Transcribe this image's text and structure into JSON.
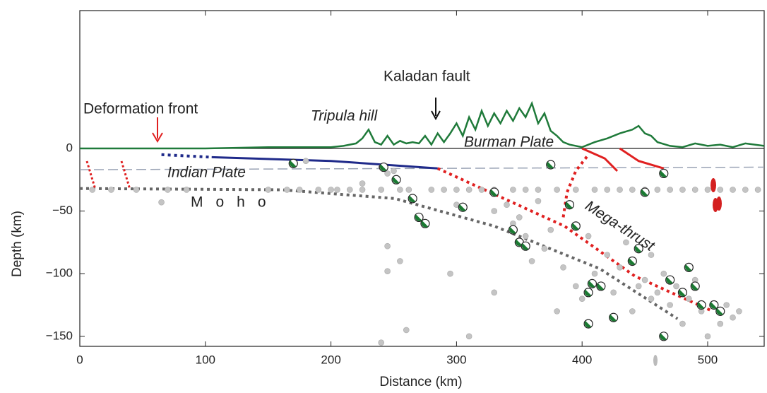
{
  "chart_data": {
    "type": "scatter",
    "xlabel": "Distance (km)",
    "ylabel": "Depth (km)",
    "xlim": [
      0,
      545
    ],
    "ylim": [
      -158,
      110
    ],
    "xticks": [
      0,
      100,
      200,
      300,
      400,
      500
    ],
    "yticks": [
      0,
      {
        "value": -50,
        "label": "−50"
      },
      {
        "value": -100,
        "label": "−100"
      },
      {
        "value": -150,
        "label": "−150"
      }
    ],
    "annotations": [
      "Deformation front",
      "Tripula hill",
      "Kaladan fault",
      "Burman Plate",
      "Indian Plate",
      "Moho",
      "Mega-thrust"
    ],
    "series": [
      {
        "style": "line",
        "color": "#1f7a3a",
        "x": [
          0,
          50,
          100,
          150,
          200,
          210,
          220,
          225,
          230,
          235,
          240,
          245,
          250,
          255,
          260,
          265,
          270,
          275,
          280,
          285,
          290,
          295,
          300,
          305,
          310,
          315,
          320,
          325,
          330,
          335,
          340,
          345,
          350,
          355,
          360,
          365,
          370,
          375,
          380,
          385,
          390,
          400,
          410,
          420,
          430,
          440,
          445,
          450,
          455,
          460,
          470,
          480,
          490,
          500,
          510,
          520,
          530,
          545
        ],
        "values": [
          0,
          0,
          0,
          1,
          1,
          2,
          4,
          8,
          15,
          5,
          3,
          10,
          3,
          6,
          4,
          5,
          4,
          10,
          3,
          12,
          5,
          12,
          20,
          10,
          25,
          15,
          30,
          18,
          28,
          20,
          30,
          22,
          32,
          25,
          36,
          20,
          28,
          14,
          10,
          5,
          3,
          1,
          5,
          8,
          12,
          15,
          18,
          12,
          10,
          5,
          2,
          1,
          4,
          2,
          3,
          1,
          4,
          2
        ]
      },
      {
        "style": "dashed",
        "color": "#9aa3b5",
        "x": [
          0,
          545
        ],
        "values": [
          -17,
          -15
        ]
      },
      {
        "style": "dotted",
        "color": "#666666",
        "x": [
          0,
          161,
          251,
          330,
          414,
          476
        ],
        "values": [
          -32,
          -33,
          -40,
          -62,
          -96,
          -136
        ]
      },
      {
        "style": "dotted",
        "color": "#1f2a8a",
        "x": [
          65,
          105
        ],
        "values": [
          -5,
          -7
        ]
      },
      {
        "style": "line",
        "color": "#1f2a8a",
        "x": [
          105,
          200,
          285
        ],
        "values": [
          -7,
          -10,
          -16
        ]
      },
      {
        "style": "dotted",
        "color": "#e02020",
        "x": [
          285,
          386,
          442,
          504
        ],
        "values": [
          -16,
          -62,
          -102,
          -130
        ]
      },
      {
        "style": "dotted",
        "color": "#e02020",
        "x": [
          385,
          388,
          395,
          405
        ],
        "values": [
          -55,
          -35,
          -18,
          -5
        ]
      },
      {
        "style": "line",
        "color": "#e02020",
        "x": [
          400,
          418,
          428
        ],
        "values": [
          0,
          -8,
          -18
        ]
      },
      {
        "style": "line",
        "color": "#e02020",
        "x": [
          430,
          445,
          465
        ],
        "values": [
          0,
          -10,
          -16
        ]
      },
      {
        "style": "points",
        "color": "#c4c4c4",
        "x": [
          10,
          25,
          45,
          70,
          85,
          150,
          165,
          175,
          190,
          200,
          205,
          215,
          225,
          240,
          255,
          262,
          280,
          290,
          300,
          310,
          320,
          330,
          345,
          355,
          365,
          380,
          395,
          410,
          420,
          430,
          440,
          450,
          460,
          470,
          480,
          490,
          500,
          510,
          520,
          530,
          540,
          180,
          240,
          245,
          250,
          225,
          65,
          245,
          245,
          255,
          295,
          240,
          260,
          310,
          330,
          345,
          330,
          350,
          355,
          360,
          370,
          375,
          380,
          385,
          395,
          400,
          410,
          420,
          425,
          430,
          440,
          445,
          450,
          455,
          460,
          465,
          470,
          475,
          480,
          485,
          490,
          495,
          500,
          510,
          515,
          520,
          525,
          455,
          435,
          405,
          390,
          365,
          340,
          300
        ],
        "values": [
          -33,
          -33,
          -33,
          -33,
          -33,
          -33,
          -33,
          -33,
          -33,
          -33,
          -33,
          -33,
          -33,
          -33,
          -33,
          -33,
          -33,
          -33,
          -33,
          -33,
          -33,
          -33,
          -33,
          -33,
          -33,
          -33,
          -33,
          -33,
          -33,
          -33,
          -33,
          -33,
          -33,
          -33,
          -33,
          -33,
          -33,
          -33,
          -33,
          -33,
          -33,
          -10,
          -15,
          -20,
          -18,
          -28,
          -43,
          -78,
          -98,
          -90,
          -100,
          -155,
          -145,
          -150,
          -115,
          -60,
          -50,
          -55,
          -70,
          -90,
          -80,
          -65,
          -130,
          -95,
          -110,
          -120,
          -100,
          -85,
          -115,
          -95,
          -130,
          -110,
          -105,
          -120,
          -115,
          -100,
          -125,
          -110,
          -140,
          -120,
          -105,
          -130,
          -150,
          -140,
          -125,
          -135,
          -130,
          -85,
          -75,
          -70,
          -45,
          -42,
          -45,
          -45
        ]
      },
      {
        "style": "focal",
        "color": "#1a7a32",
        "x": [
          170,
          242,
          252,
          265,
          275,
          305,
          330,
          345,
          350,
          355,
          375,
          390,
          395,
          405,
          408,
          415,
          425,
          405,
          440,
          445,
          450,
          465,
          470,
          480,
          485,
          490,
          495,
          505,
          510,
          465,
          270
        ],
        "values": [
          -12,
          -15,
          -25,
          -40,
          -60,
          -47,
          -35,
          -65,
          -75,
          -78,
          -13,
          -45,
          -62,
          -115,
          -108,
          -110,
          -135,
          -140,
          -90,
          -80,
          -35,
          -20,
          -105,
          -115,
          -95,
          -110,
          -125,
          -125,
          -130,
          -150,
          -55
        ]
      }
    ]
  }
}
